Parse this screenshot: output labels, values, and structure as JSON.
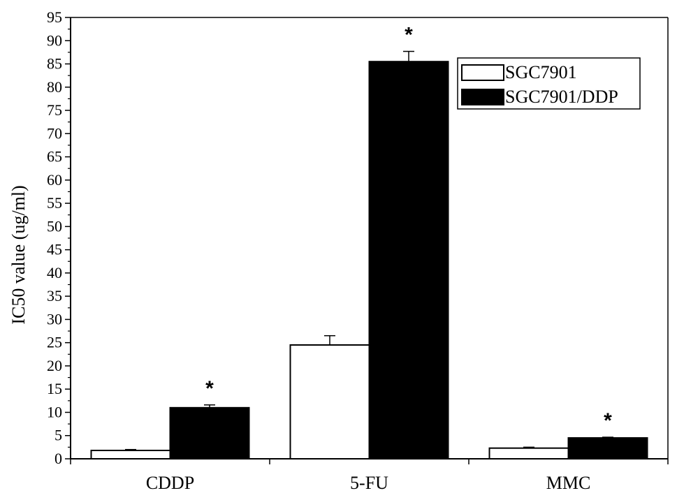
{
  "chart_data": {
    "type": "bar",
    "categories": [
      "CDDP",
      "5-FU",
      "MMC"
    ],
    "series": [
      {
        "name": "SGC7901",
        "values": [
          1.8,
          24.5,
          2.3
        ],
        "errors": [
          0.2,
          2.0,
          0.2
        ],
        "fill": "#ffffff"
      },
      {
        "name": "SGC7901/DDP",
        "values": [
          11.0,
          85.5,
          4.5
        ],
        "errors": [
          0.6,
          2.2,
          0.15
        ],
        "fill": "#000000"
      }
    ],
    "significance": [
      "*",
      "*",
      "*"
    ],
    "ylabel": "IC50 value  (ug/ml)",
    "xlabel": "",
    "ylim": [
      0,
      95
    ],
    "yticks": [
      0,
      5,
      10,
      15,
      20,
      25,
      30,
      35,
      40,
      45,
      50,
      55,
      60,
      65,
      70,
      75,
      80,
      85,
      90,
      95
    ],
    "legend_position": "top-right",
    "grid": false
  }
}
